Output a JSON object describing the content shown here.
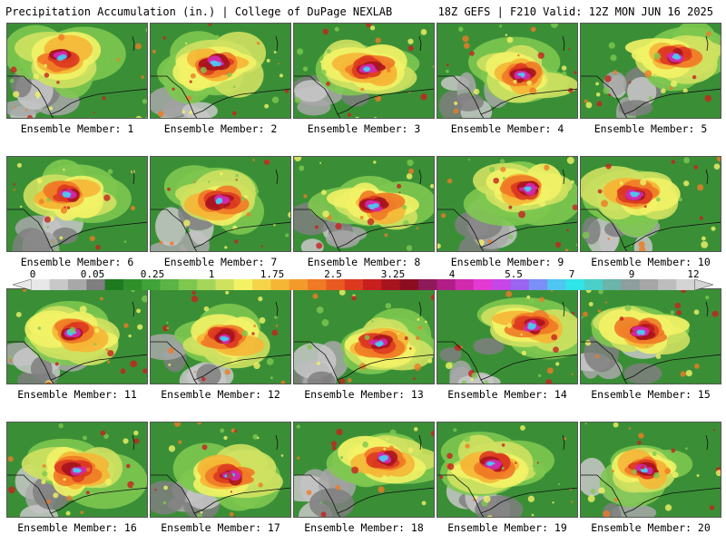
{
  "header": {
    "left": "Precipitation Accumulation (in.) | College of DuPage NEXLAB",
    "right": "18Z GEFS | F210 Valid: 12Z MON JUN 16 2025"
  },
  "colorbar": {
    "tick_labels": [
      "0",
      "0.05",
      "0.25",
      "1",
      "1.75",
      "2.5",
      "3.25",
      "4",
      "5.5",
      "7",
      "9",
      "12"
    ],
    "colors": [
      "#e8e8e8",
      "#c8c8c8",
      "#a8a8a8",
      "#7f7f7f",
      "#1e7a1e",
      "#2f8f2a",
      "#3fa33a",
      "#5bb546",
      "#7ec850",
      "#a4d65a",
      "#cfe160",
      "#f2f266",
      "#f5d44a",
      "#f5b636",
      "#f39a2c",
      "#ef7a26",
      "#e85a22",
      "#dc3a20",
      "#c8201e",
      "#a8141e",
      "#8a0e20",
      "#8e1a5a",
      "#b01e86",
      "#d22aae",
      "#e23ad2",
      "#c646e6",
      "#9a64f0",
      "#7a90f4",
      "#4ec6f0",
      "#30e4e8",
      "#4ad0c8",
      "#6ab4aa",
      "#8e9e9e",
      "#a6a6a6",
      "#bdbdbd",
      "#d4d4d4"
    ]
  },
  "panels": [
    {
      "label": "Ensemble Member: 1"
    },
    {
      "label": "Ensemble Member: 2"
    },
    {
      "label": "Ensemble Member: 3"
    },
    {
      "label": "Ensemble Member: 4"
    },
    {
      "label": "Ensemble Member: 5"
    },
    {
      "label": "Ensemble Member: 6"
    },
    {
      "label": "Ensemble Member: 7"
    },
    {
      "label": "Ensemble Member: 8"
    },
    {
      "label": "Ensemble Member: 9"
    },
    {
      "label": "Ensemble Member: 10"
    },
    {
      "label": "Ensemble Member: 11"
    },
    {
      "label": "Ensemble Member: 12"
    },
    {
      "label": "Ensemble Member: 13"
    },
    {
      "label": "Ensemble Member: 14"
    },
    {
      "label": "Ensemble Member: 15"
    },
    {
      "label": "Ensemble Member: 16"
    },
    {
      "label": "Ensemble Member: 17"
    },
    {
      "label": "Ensemble Member: 18"
    },
    {
      "label": "Ensemble Member: 19"
    },
    {
      "label": "Ensemble Member: 20"
    }
  ]
}
